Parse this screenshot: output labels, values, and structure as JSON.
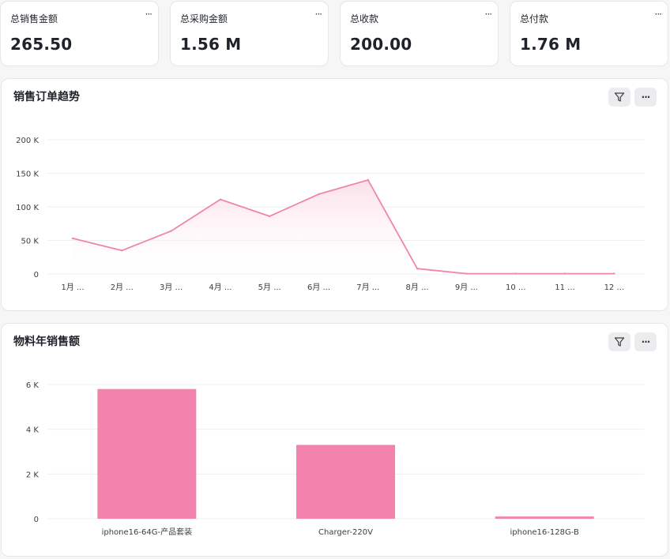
{
  "kpis": [
    {
      "title": "总销售金额",
      "value": "265.50"
    },
    {
      "title": "总采购金额",
      "value": "1.56 M"
    },
    {
      "title": "总收款",
      "value": "200.00"
    },
    {
      "title": "总付款",
      "value": "1.76 M"
    }
  ],
  "icons": {
    "more": "more-horizontal-icon",
    "filter": "filter-icon"
  },
  "colors": {
    "accent": "#f383ad",
    "line": "#ef86a9",
    "area": "#fde6ee"
  },
  "line_card": {
    "title": "销售订单趋势"
  },
  "bar_card": {
    "title": "物料年销售额"
  },
  "chart_data": [
    {
      "type": "area",
      "title": "销售订单趋势",
      "categories": [
        "1月 ...",
        "2月 ...",
        "3月 ...",
        "4月 ...",
        "5月 ...",
        "6月 ...",
        "7月 ...",
        "8月 ...",
        "9月 ...",
        "10 ...",
        "11 ...",
        "12 ..."
      ],
      "values": [
        53000,
        35000,
        64000,
        111000,
        86000,
        119000,
        140000,
        8000,
        500,
        500,
        500,
        500
      ],
      "yticks": [
        0,
        50000,
        100000,
        150000,
        200000
      ],
      "ytick_labels": [
        "0",
        "50 K",
        "100 K",
        "150 K",
        "200 K"
      ],
      "ylim": [
        0,
        200000
      ],
      "grid": true
    },
    {
      "type": "bar",
      "title": "物料年销售额",
      "categories": [
        "iphone16-64G-产品套装",
        "Charger-220V",
        "iphone16-128G-B"
      ],
      "values": [
        5800,
        3300,
        100
      ],
      "yticks": [
        0,
        2000,
        4000,
        6000
      ],
      "ytick_labels": [
        "0",
        "2 K",
        "4 K",
        "6 K"
      ],
      "ylim": [
        0,
        6000
      ],
      "grid": true
    }
  ]
}
